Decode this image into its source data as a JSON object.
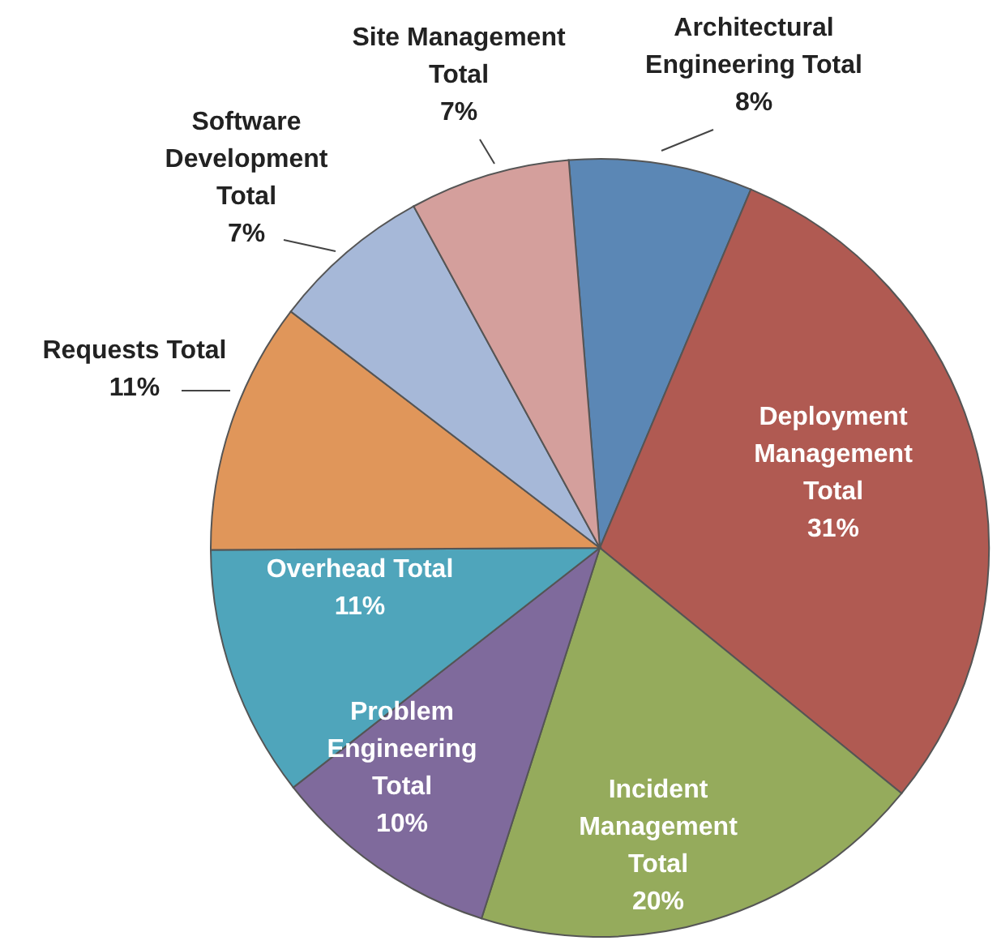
{
  "chart_data": {
    "type": "pie",
    "categories": [
      "Architectural Engineering Total",
      "Deployment Management Total",
      "Incident Management Total",
      "Problem Engineering Total",
      "Overhead Total",
      "Requests Total",
      "Software Development Total",
      "Site Management Total"
    ],
    "values": [
      8,
      31,
      20,
      10,
      11,
      11,
      7,
      7
    ],
    "colors": [
      "#5b87b5",
      "#b05a52",
      "#95ab5c",
      "#7f6a9c",
      "#4fa5bb",
      "#e0965a",
      "#a6b8d8",
      "#d49f9c"
    ],
    "value_labels": [
      "8%",
      "31%",
      "20%",
      "10%",
      "11%",
      "11%",
      "7%",
      "7%"
    ]
  }
}
